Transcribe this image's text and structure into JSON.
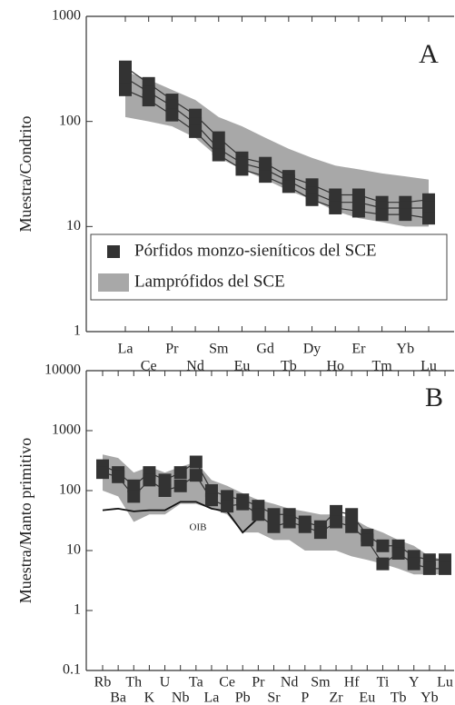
{
  "chart_data": [
    {
      "type": "line",
      "panel_label": "A",
      "ylabel": "Muestra/Condrito",
      "yscale": "log",
      "categories": [
        "La",
        "Ce",
        "Pr",
        "Nd",
        "Sm",
        "Eu",
        "Gd",
        "Tb",
        "Dy",
        "Ho",
        "Er",
        "Tm",
        "Yb",
        "Lu"
      ],
      "ylim": [
        1,
        1000
      ],
      "yticks": [
        1,
        10,
        100,
        1000
      ],
      "series": [
        {
          "name": "Pórfidos monzo-sieníticos del SCE",
          "color": "#333333",
          "values": [
            330,
            230,
            160,
            115,
            70,
            45,
            40,
            30,
            25,
            20,
            20,
            17,
            17,
            18
          ]
        },
        {
          "color": "#333333",
          "values": [
            260,
            190,
            140,
            95,
            55,
            40,
            35,
            27,
            21,
            17,
            17,
            15,
            15,
            15
          ]
        },
        {
          "color": "#333333",
          "values": [
            200,
            160,
            115,
            80,
            48,
            35,
            30,
            24,
            18,
            15,
            14,
            13,
            13,
            12
          ]
        }
      ],
      "band": {
        "name": "Lamprófidos del SCE",
        "color": "#a8a8a8",
        "low": [
          110,
          100,
          90,
          70,
          45,
          35,
          28,
          22,
          18,
          14,
          12,
          11,
          10,
          10
        ],
        "high": [
          300,
          250,
          200,
          160,
          110,
          90,
          70,
          55,
          45,
          38,
          35,
          32,
          30,
          28
        ]
      },
      "legend": "lower"
    },
    {
      "type": "line",
      "panel_label": "B",
      "ylabel": "Muestra/Manto primitivo",
      "yscale": "log",
      "categories": [
        "Rb",
        "Ba",
        "Th",
        "K",
        "U",
        "Nb",
        "Ta",
        "La",
        "Ce",
        "Pb",
        "Pr",
        "Sr",
        "Nd",
        "P",
        "Sm",
        "Zr",
        "Hf",
        "Eu",
        "Ti",
        "Tb",
        "Y",
        "Yb",
        "Lu"
      ],
      "ylim": [
        0.1,
        10000
      ],
      "yticks": [
        0.1,
        1,
        10,
        100,
        1000,
        10000
      ],
      "series": [
        {
          "color": "#333333",
          "values": [
            260,
            200,
            120,
            200,
            150,
            200,
            300,
            100,
            80,
            70,
            55,
            40,
            40,
            30,
            25,
            45,
            40,
            18,
            12,
            12,
            8,
            7,
            7
          ]
        },
        {
          "color": "#333333",
          "values": [
            200,
            170,
            80,
            150,
            100,
            120,
            180,
            70,
            55,
            60,
            40,
            25,
            30,
            25,
            20,
            30,
            25,
            15,
            6,
            9,
            6,
            5,
            5
          ]
        }
      ],
      "band": {
        "color": "#a8a8a8",
        "low": [
          100,
          80,
          30,
          40,
          40,
          60,
          60,
          50,
          40,
          20,
          20,
          15,
          15,
          10,
          10,
          10,
          8,
          7,
          6,
          5,
          4,
          4,
          4
        ],
        "high": [
          400,
          350,
          200,
          250,
          200,
          250,
          300,
          150,
          120,
          90,
          70,
          60,
          50,
          45,
          40,
          40,
          35,
          25,
          20,
          15,
          12,
          8,
          7
        ]
      },
      "reference": {
        "name": "OIB",
        "color": "#111111",
        "values": [
          47,
          50,
          45,
          47,
          47,
          65,
          65,
          50,
          45,
          20,
          35,
          null,
          null,
          null,
          null,
          null,
          null,
          null,
          null,
          null,
          null,
          null,
          null
        ]
      }
    }
  ]
}
